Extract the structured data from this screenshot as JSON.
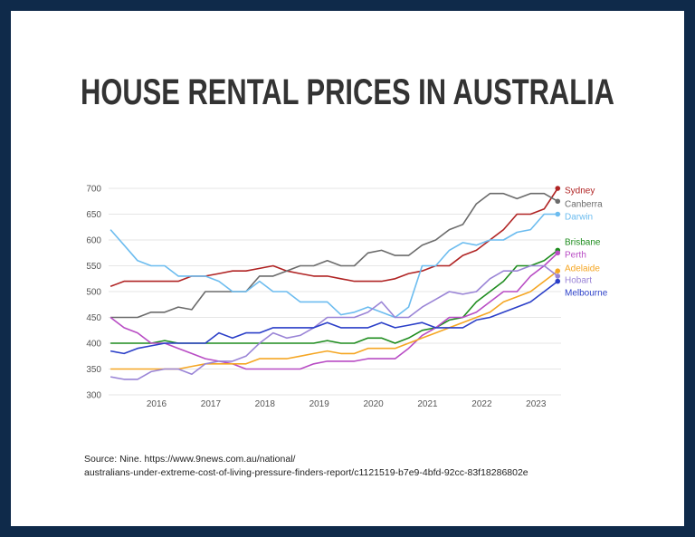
{
  "chart_data": {
    "type": "line",
    "title": "HOUSE RENTAL PRICES IN AUSTRALIA",
    "xlabel": "",
    "ylabel": "",
    "x_tick_labels": [
      "2016",
      "2017",
      "2018",
      "2019",
      "2020",
      "2021",
      "2022",
      "2023"
    ],
    "y_tick_labels": [
      "300",
      "350",
      "400",
      "450",
      "500",
      "550",
      "600",
      "650",
      "700"
    ],
    "xlim": [
      2015.15,
      2023.4
    ],
    "ylim": [
      300,
      700
    ],
    "grid": "horizontal",
    "legend": "right-end labels",
    "x": [
      2015.15,
      2015.4,
      2015.65,
      2015.9,
      2016.15,
      2016.4,
      2016.65,
      2016.9,
      2017.15,
      2017.4,
      2017.65,
      2017.9,
      2018.15,
      2018.4,
      2018.65,
      2018.9,
      2019.15,
      2019.4,
      2019.65,
      2019.9,
      2020.15,
      2020.4,
      2020.65,
      2020.9,
      2021.15,
      2021.4,
      2021.65,
      2021.9,
      2022.15,
      2022.4,
      2022.65,
      2022.9,
      2023.15,
      2023.4
    ],
    "series": [
      {
        "name": "Sydney",
        "color": "#b02323",
        "values": [
          510,
          520,
          520,
          520,
          520,
          520,
          530,
          530,
          535,
          540,
          540,
          545,
          550,
          540,
          535,
          530,
          530,
          525,
          520,
          520,
          520,
          525,
          535,
          540,
          550,
          550,
          570,
          580,
          600,
          620,
          650,
          650,
          660,
          700
        ]
      },
      {
        "name": "Canberra",
        "color": "#6b6b6b",
        "values": [
          450,
          450,
          450,
          460,
          460,
          470,
          465,
          500,
          500,
          500,
          500,
          530,
          530,
          540,
          550,
          550,
          560,
          550,
          550,
          575,
          580,
          570,
          570,
          590,
          600,
          620,
          630,
          670,
          690,
          690,
          680,
          690,
          690,
          675
        ]
      },
      {
        "name": "Darwin",
        "color": "#6cbcef",
        "values": [
          620,
          590,
          560,
          550,
          550,
          530,
          530,
          530,
          520,
          500,
          500,
          520,
          500,
          500,
          480,
          480,
          480,
          455,
          460,
          470,
          460,
          450,
          470,
          550,
          550,
          580,
          595,
          590,
          600,
          600,
          615,
          620,
          650,
          650
        ]
      },
      {
        "name": "Brisbane",
        "color": "#1e8c1e",
        "values": [
          400,
          400,
          400,
          400,
          405,
          400,
          400,
          400,
          400,
          400,
          400,
          400,
          400,
          400,
          400,
          400,
          405,
          400,
          400,
          410,
          410,
          400,
          410,
          425,
          430,
          445,
          450,
          480,
          500,
          520,
          550,
          550,
          560,
          580
        ]
      },
      {
        "name": "Perth",
        "color": "#b84cc4",
        "values": [
          450,
          430,
          420,
          400,
          400,
          390,
          380,
          370,
          365,
          360,
          350,
          350,
          350,
          350,
          350,
          360,
          365,
          365,
          365,
          370,
          370,
          370,
          390,
          415,
          430,
          450,
          450,
          460,
          480,
          500,
          500,
          530,
          550,
          575
        ]
      },
      {
        "name": "Adelaide",
        "color": "#f5a623",
        "values": [
          350,
          350,
          350,
          350,
          350,
          350,
          355,
          360,
          360,
          360,
          360,
          370,
          370,
          370,
          375,
          380,
          385,
          380,
          380,
          390,
          390,
          390,
          400,
          410,
          420,
          430,
          440,
          450,
          460,
          480,
          490,
          500,
          520,
          540
        ]
      },
      {
        "name": "Hobart",
        "color": "#9a84d6",
        "values": [
          335,
          330,
          330,
          345,
          350,
          350,
          340,
          360,
          365,
          365,
          375,
          400,
          420,
          410,
          415,
          430,
          450,
          450,
          450,
          460,
          480,
          450,
          450,
          470,
          485,
          500,
          495,
          500,
          525,
          540,
          540,
          550,
          550,
          530
        ]
      },
      {
        "name": "Melbourne",
        "color": "#2b3fc8",
        "values": [
          385,
          380,
          390,
          395,
          400,
          400,
          400,
          400,
          420,
          410,
          420,
          420,
          430,
          430,
          430,
          430,
          440,
          430,
          430,
          430,
          440,
          430,
          435,
          440,
          430,
          430,
          430,
          445,
          450,
          460,
          470,
          480,
          500,
          520
        ]
      }
    ]
  },
  "source": {
    "line1": "Source: Nine. https://www.9news.com.au/national/",
    "line2": "australians-under-extreme-cost-of-living-pressure-finders-report/c1121519-b7e9-4bfd-92cc-83f18286802e"
  }
}
